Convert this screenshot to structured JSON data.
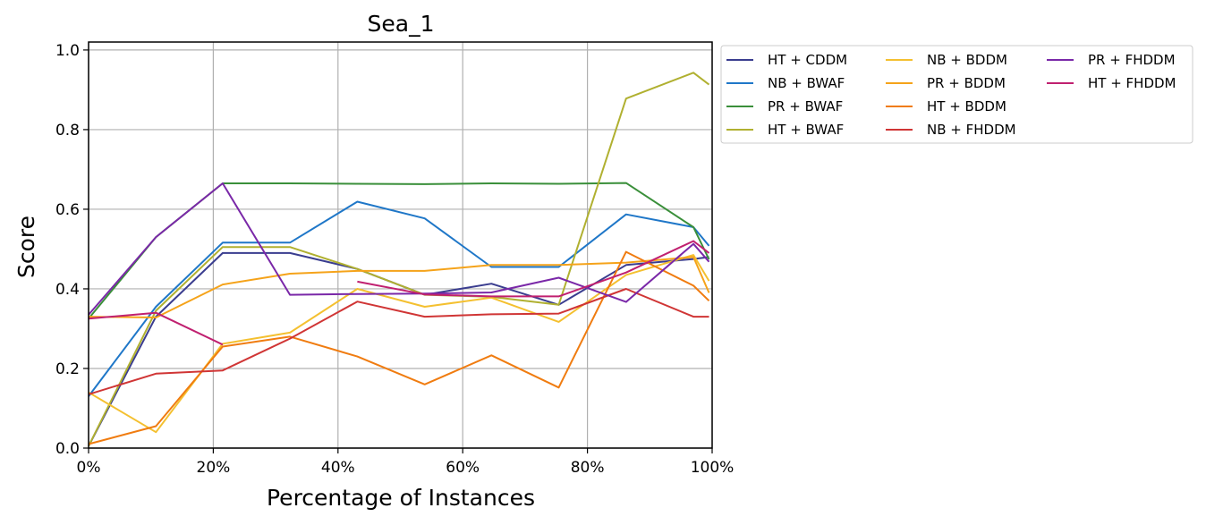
{
  "chart_data": {
    "type": "line",
    "title": "Sea_1",
    "xlabel": "Percentage of Instances",
    "ylabel": "Score",
    "xlim": [
      0,
      100
    ],
    "ylim": [
      0,
      1.02
    ],
    "x_ticks": [
      0,
      20,
      40,
      60,
      80,
      100
    ],
    "x_tick_labels": [
      "0%",
      "20%",
      "40%",
      "60%",
      "80%",
      "100%"
    ],
    "y_ticks": [
      0,
      0.2,
      0.4,
      0.6,
      0.8,
      1.0
    ],
    "y_tick_labels": [
      "0.0",
      "0.2",
      "0.4",
      "0.6",
      "0.8",
      "1.0"
    ],
    "grid": true,
    "legend_position": "outside-right-top",
    "legend_columns": 3,
    "x": [
      0,
      10.8,
      21.5,
      32.3,
      43.1,
      53.9,
      64.6,
      75.4,
      86.2,
      97.0,
      99.5
    ],
    "series": [
      {
        "name": "HT + CDDM",
        "color": "#3a3d8f",
        "values": [
          0.005,
          0.33,
          0.49,
          0.49,
          0.45,
          0.385,
          0.413,
          0.36,
          0.46,
          0.475,
          0.48
        ]
      },
      {
        "name": "NB + BWAF",
        "color": "#1f77c8",
        "values": [
          0.13,
          0.355,
          0.516,
          0.516,
          0.619,
          0.577,
          0.455,
          0.455,
          0.587,
          0.555,
          0.508
        ]
      },
      {
        "name": "PR + BWAF",
        "color": "#3a8f3a",
        "values": [
          0.325,
          0.53,
          0.665,
          0.665,
          0.664,
          0.663,
          0.665,
          0.664,
          0.666,
          0.555,
          0.474
        ]
      },
      {
        "name": "HT + BWAF",
        "color": "#b0b030",
        "values": [
          0.005,
          0.345,
          0.505,
          0.505,
          0.45,
          0.385,
          0.38,
          0.36,
          0.878,
          0.943,
          0.913
        ]
      },
      {
        "name": "NB + BDDM",
        "color": "#f4c030",
        "values": [
          0.14,
          0.04,
          0.262,
          0.29,
          0.4,
          0.355,
          0.378,
          0.317,
          0.435,
          0.485,
          0.42
        ]
      },
      {
        "name": "PR + BDDM",
        "color": "#f5a31a",
        "values": [
          0.33,
          0.328,
          0.411,
          0.438,
          0.445,
          0.445,
          0.46,
          0.46,
          0.466,
          0.48,
          0.39
        ]
      },
      {
        "name": "HT + BDDM",
        "color": "#f07c10",
        "values": [
          0.01,
          0.055,
          0.255,
          0.28,
          0.23,
          0.16,
          0.233,
          0.152,
          0.493,
          0.408,
          0.37
        ]
      },
      {
        "name": "NB + FHDDM",
        "color": "#d03535",
        "values": [
          0.135,
          0.187,
          0.195,
          0.275,
          0.368,
          0.33,
          0.336,
          0.338,
          0.4,
          0.33,
          0.33
        ]
      },
      {
        "name": "PR + FHDDM",
        "color": "#7a28a8",
        "values": [
          0.335,
          0.53,
          0.665,
          0.385,
          0.387,
          0.388,
          0.391,
          0.428,
          0.367,
          0.513,
          0.468
        ]
      },
      {
        "name": "HT + FHDDM",
        "color": "#c02070",
        "values": [
          0.325,
          0.34,
          0.26,
          null,
          0.418,
          0.386,
          0.381,
          0.381,
          0.441,
          0.52,
          0.49
        ]
      }
    ]
  }
}
